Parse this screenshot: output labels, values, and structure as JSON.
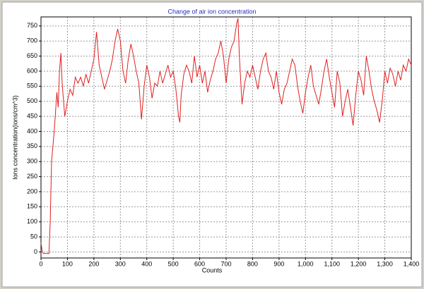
{
  "chart_data": {
    "type": "line",
    "title": "Change of air ion concentration",
    "xlabel": "Counts",
    "ylabel": "Ions concentration(ions/cm^3)",
    "color": "#e02020",
    "grid": true,
    "xlim": [
      0,
      1400
    ],
    "ylim": [
      -20,
      780
    ],
    "xticks": [
      0,
      100,
      200,
      300,
      400,
      500,
      600,
      700,
      800,
      900,
      {
        "value": 1000,
        "label": "1,000"
      },
      {
        "value": 1100,
        "label": "1,100"
      },
      {
        "value": 1200,
        "label": "1,200"
      },
      {
        "value": 1300,
        "label": "1,300"
      },
      {
        "value": 1400,
        "label": "1,400"
      }
    ],
    "yticks": [
      0,
      50,
      100,
      150,
      200,
      250,
      300,
      350,
      400,
      450,
      500,
      550,
      600,
      650,
      700,
      750
    ],
    "x": [
      0,
      5,
      10,
      30,
      35,
      40,
      50,
      60,
      65,
      70,
      75,
      80,
      90,
      100,
      110,
      120,
      130,
      140,
      150,
      160,
      170,
      180,
      190,
      200,
      210,
      220,
      230,
      240,
      250,
      260,
      270,
      280,
      290,
      300,
      310,
      320,
      330,
      340,
      350,
      360,
      370,
      380,
      390,
      400,
      410,
      420,
      430,
      440,
      450,
      460,
      470,
      480,
      490,
      500,
      510,
      520,
      525,
      530,
      540,
      550,
      560,
      570,
      580,
      590,
      600,
      610,
      620,
      630,
      640,
      650,
      660,
      670,
      680,
      690,
      700,
      710,
      720,
      730,
      740,
      745,
      750,
      760,
      770,
      780,
      790,
      800,
      810,
      820,
      830,
      840,
      850,
      860,
      870,
      880,
      890,
      900,
      910,
      920,
      930,
      940,
      950,
      960,
      970,
      980,
      990,
      1000,
      1010,
      1020,
      1030,
      1040,
      1050,
      1060,
      1070,
      1080,
      1090,
      1100,
      1110,
      1120,
      1130,
      1140,
      1150,
      1160,
      1170,
      1180,
      1190,
      1200,
      1210,
      1220,
      1230,
      1240,
      1250,
      1260,
      1270,
      1280,
      1290,
      1300,
      1310,
      1320,
      1330,
      1340,
      1350,
      1360,
      1370,
      1380,
      1390,
      1400
    ],
    "values": [
      30,
      0,
      -5,
      -5,
      100,
      300,
      400,
      530,
      480,
      600,
      660,
      560,
      450,
      500,
      540,
      520,
      580,
      560,
      580,
      550,
      590,
      560,
      600,
      640,
      730,
      620,
      580,
      540,
      570,
      600,
      640,
      700,
      740,
      700,
      600,
      560,
      640,
      690,
      650,
      600,
      560,
      440,
      550,
      620,
      580,
      510,
      560,
      550,
      600,
      560,
      590,
      620,
      580,
      600,
      540,
      450,
      430,
      520,
      590,
      620,
      600,
      560,
      650,
      580,
      620,
      560,
      600,
      530,
      570,
      600,
      640,
      660,
      700,
      650,
      560,
      640,
      680,
      700,
      760,
      775,
      650,
      490,
      560,
      600,
      580,
      620,
      580,
      540,
      600,
      640,
      660,
      600,
      580,
      540,
      600,
      530,
      490,
      540,
      560,
      600,
      640,
      620,
      550,
      500,
      460,
      530,
      580,
      620,
      550,
      520,
      490,
      540,
      600,
      640,
      580,
      530,
      480,
      600,
      560,
      450,
      500,
      540,
      480,
      420,
      520,
      600,
      570,
      520,
      650,
      600,
      540,
      500,
      470,
      430,
      500,
      600,
      560,
      610,
      590,
      550,
      600,
      570,
      620,
      600,
      640,
      620
    ]
  }
}
